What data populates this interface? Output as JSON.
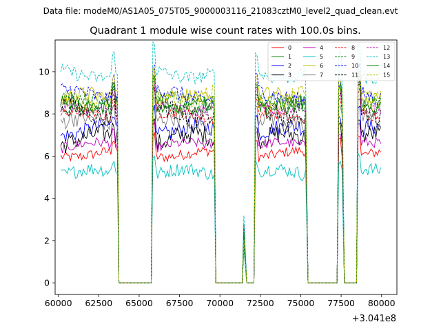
{
  "header": {
    "data_file_label": "Data file: modeM0/AS1A05_075T05_9000003116_21083cztM0_level2_quad_clean.evt"
  },
  "chart_data": {
    "type": "line",
    "title": "Quadrant 1 module wise count rates with 100.0s bins.",
    "xlabel": "",
    "ylabel": "",
    "x_offset_label": "+3.041e8",
    "xlim": [
      59800,
      80950
    ],
    "ylim": [
      -0.55,
      11.5
    ],
    "x_ticks": [
      60000,
      62500,
      65000,
      67500,
      70000,
      72500,
      75000,
      77500,
      80000
    ],
    "x_tick_labels": [
      "60000",
      "62500",
      "65000",
      "67500",
      "70000",
      "72500",
      "75000",
      "77500",
      "80000"
    ],
    "y_ticks": [
      0,
      2,
      4,
      6,
      8,
      10
    ],
    "y_tick_labels": [
      "0",
      "2",
      "4",
      "6",
      "8",
      "10"
    ],
    "grid": false,
    "legend_position": "top-right",
    "bin_width_s": 100,
    "segments": [
      {
        "start": 60150,
        "end": 63650,
        "peak_start": 63400,
        "peak_scale": 1.1
      },
      {
        "start": 65850,
        "end": 69650,
        "peak_start": 65850,
        "peak_scale": 1.15
      },
      {
        "start": 71480,
        "end": 71560,
        "peak_start": 71480,
        "peak_scale": 0.5
      },
      {
        "start": 72200,
        "end": 75350,
        "peak_start": 72200,
        "peak_scale": 1.1
      },
      {
        "start": 77350,
        "end": 77600,
        "peak_start": 77350,
        "peak_scale": 1.1
      },
      {
        "start": 78550,
        "end": 80000,
        "peak_start": 78600,
        "peak_scale": 1.15
      }
    ],
    "gap_level": 0,
    "series": [
      {
        "name": "0",
        "color": "#ff0000",
        "dash": "solid",
        "mean_rate": 6.1
      },
      {
        "name": "1",
        "color": "#008000",
        "dash": "solid",
        "mean_rate": 8.4
      },
      {
        "name": "2",
        "color": "#0000ff",
        "dash": "solid",
        "mean_rate": 7.2
      },
      {
        "name": "3",
        "color": "#000000",
        "dash": "solid",
        "mean_rate": 6.8
      },
      {
        "name": "4",
        "color": "#bf00bf",
        "dash": "solid",
        "mean_rate": 6.5
      },
      {
        "name": "5",
        "color": "#00bfbf",
        "dash": "solid",
        "mean_rate": 5.2
      },
      {
        "name": "6",
        "color": "#bfbf00",
        "dash": "solid",
        "mean_rate": 8.7
      },
      {
        "name": "7",
        "color": "#808080",
        "dash": "solid",
        "mean_rate": 7.6
      },
      {
        "name": "8",
        "color": "#ff0000",
        "dash": "dashed",
        "mean_rate": 7.9
      },
      {
        "name": "9",
        "color": "#008000",
        "dash": "dashed",
        "mean_rate": 8.6
      },
      {
        "name": "10",
        "color": "#0000ff",
        "dash": "dashed",
        "mean_rate": 8.9
      },
      {
        "name": "11",
        "color": "#000000",
        "dash": "dashed",
        "mean_rate": 8.1
      },
      {
        "name": "12",
        "color": "#bf00bf",
        "dash": "dashed",
        "mean_rate": 8.3
      },
      {
        "name": "13",
        "color": "#00bfbf",
        "dash": "dashed",
        "mean_rate": 9.9
      },
      {
        "name": "14",
        "color": "#008000",
        "dash": "solid",
        "mean_rate": 8.5
      },
      {
        "name": "15",
        "color": "#bfbf00",
        "dash": "dashed",
        "mean_rate": 8.8
      }
    ],
    "legend_columns": 4
  }
}
